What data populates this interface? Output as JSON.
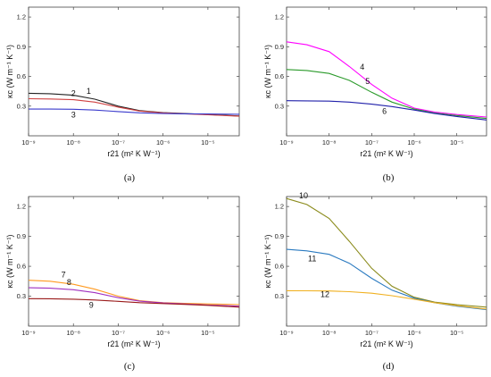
{
  "chart_data": [
    {
      "type": "line",
      "panel": "a",
      "caption": "(a)",
      "xlabel": "r21 (m² K W⁻¹)",
      "ylabel": "κc (W m⁻¹ K⁻¹)",
      "x_scale": "log",
      "xlim": [
        1e-09,
        5e-05
      ],
      "ylim": [
        0,
        1.3
      ],
      "x_ticks": [
        "10⁻⁹",
        "10⁻⁸",
        "10⁻⁷",
        "10⁻⁶",
        "10⁻⁵"
      ],
      "y_ticks": [
        "0.3",
        "0.6",
        "0.9",
        "1.2"
      ],
      "grid": false,
      "series": [
        {
          "name": "1",
          "color": "#222222",
          "x": [
            1e-09,
            3e-09,
            1e-08,
            3e-08,
            1e-07,
            3e-07,
            1e-06,
            3e-06,
            1e-05,
            5e-05
          ],
          "y": [
            0.43,
            0.425,
            0.41,
            0.37,
            0.3,
            0.255,
            0.235,
            0.225,
            0.215,
            0.2
          ]
        },
        {
          "name": "2",
          "color": "#d04040",
          "x": [
            1e-09,
            3e-09,
            1e-08,
            3e-08,
            1e-07,
            3e-07,
            1e-06,
            3e-06,
            1e-05,
            5e-05
          ],
          "y": [
            0.375,
            0.372,
            0.365,
            0.34,
            0.29,
            0.25,
            0.232,
            0.222,
            0.212,
            0.198
          ]
        },
        {
          "name": "3",
          "color": "#3a3acc",
          "x": [
            1e-09,
            3e-09,
            1e-08,
            3e-08,
            1e-07,
            3e-07,
            1e-06,
            3e-06,
            1e-05,
            5e-05
          ],
          "y": [
            0.27,
            0.27,
            0.268,
            0.26,
            0.245,
            0.232,
            0.225,
            0.222,
            0.22,
            0.218
          ]
        }
      ]
    },
    {
      "type": "line",
      "panel": "b",
      "caption": "(b)",
      "xlabel": "r21 (m² K W⁻¹)",
      "ylabel": "κc (W m⁻¹ K⁻¹)",
      "x_scale": "log",
      "xlim": [
        1e-09,
        5e-05
      ],
      "ylim": [
        0,
        1.3
      ],
      "x_ticks": [
        "10⁻⁹",
        "10⁻⁸",
        "10⁻⁷",
        "10⁻⁶",
        "10⁻⁵"
      ],
      "y_ticks": [
        "0.3",
        "0.6",
        "0.9",
        "1.2"
      ],
      "grid": false,
      "series": [
        {
          "name": "4",
          "color": "#ff00ff",
          "x": [
            1e-09,
            3e-09,
            1e-08,
            3e-08,
            1e-07,
            3e-07,
            1e-06,
            3e-06,
            1e-05,
            5e-05
          ],
          "y": [
            0.95,
            0.92,
            0.85,
            0.7,
            0.52,
            0.38,
            0.28,
            0.24,
            0.215,
            0.19
          ]
        },
        {
          "name": "5",
          "color": "#2a9a2a",
          "x": [
            1e-09,
            3e-09,
            1e-08,
            3e-08,
            1e-07,
            3e-07,
            1e-06,
            3e-06,
            1e-05,
            5e-05
          ],
          "y": [
            0.67,
            0.66,
            0.63,
            0.56,
            0.44,
            0.34,
            0.27,
            0.23,
            0.205,
            0.175
          ]
        },
        {
          "name": "6",
          "color": "#2020aa",
          "x": [
            1e-09,
            3e-09,
            1e-08,
            3e-08,
            1e-07,
            3e-07,
            1e-06,
            3e-06,
            1e-05,
            5e-05
          ],
          "y": [
            0.355,
            0.353,
            0.35,
            0.34,
            0.32,
            0.295,
            0.26,
            0.225,
            0.195,
            0.16
          ]
        }
      ]
    },
    {
      "type": "line",
      "panel": "c",
      "caption": "(c)",
      "xlabel": "r21 (m² K W⁻¹)",
      "ylabel": "κc (W m⁻¹ K⁻¹)",
      "x_scale": "log",
      "xlim": [
        1e-09,
        5e-05
      ],
      "ylim": [
        0,
        1.3
      ],
      "x_ticks": [
        "10⁻⁹",
        "10⁻⁸",
        "10⁻⁷",
        "10⁻⁶",
        "10⁻⁵"
      ],
      "y_ticks": [
        "0.3",
        "0.6",
        "0.9",
        "1.2"
      ],
      "grid": false,
      "series": [
        {
          "name": "7",
          "color": "#ff9a20",
          "x": [
            1e-09,
            3e-09,
            1e-08,
            3e-08,
            1e-07,
            3e-07,
            1e-06,
            3e-06,
            1e-05,
            5e-05
          ],
          "y": [
            0.46,
            0.45,
            0.42,
            0.37,
            0.3,
            0.255,
            0.235,
            0.228,
            0.222,
            0.215
          ]
        },
        {
          "name": "8",
          "color": "#a030c0",
          "x": [
            1e-09,
            3e-09,
            1e-08,
            3e-08,
            1e-07,
            3e-07,
            1e-06,
            3e-06,
            1e-05,
            5e-05
          ],
          "y": [
            0.385,
            0.38,
            0.365,
            0.335,
            0.285,
            0.25,
            0.232,
            0.222,
            0.212,
            0.2
          ]
        },
        {
          "name": "9",
          "color": "#9a1a1a",
          "x": [
            1e-09,
            3e-09,
            1e-08,
            3e-08,
            1e-07,
            3e-07,
            1e-06,
            3e-06,
            1e-05,
            5e-05
          ],
          "y": [
            0.275,
            0.274,
            0.27,
            0.262,
            0.248,
            0.235,
            0.226,
            0.218,
            0.208,
            0.19
          ]
        }
      ]
    },
    {
      "type": "line",
      "panel": "d",
      "caption": "(d)",
      "xlabel": "r21 (m² K W⁻¹)",
      "ylabel": "κc (W m⁻¹ K⁻¹)",
      "x_scale": "log",
      "xlim": [
        1e-09,
        5e-05
      ],
      "ylim": [
        0,
        1.3
      ],
      "x_ticks": [
        "10⁻⁹",
        "10⁻⁸",
        "10⁻⁷",
        "10⁻⁶",
        "10⁻⁵"
      ],
      "y_ticks": [
        "0.3",
        "0.6",
        "0.9",
        "1.2"
      ],
      "grid": false,
      "series": [
        {
          "name": "10",
          "color": "#8a8a1a",
          "x": [
            1e-09,
            3e-09,
            1e-08,
            3e-08,
            1e-07,
            3e-07,
            1e-06,
            3e-06,
            1e-05,
            5e-05
          ],
          "y": [
            1.28,
            1.22,
            1.08,
            0.85,
            0.58,
            0.4,
            0.29,
            0.24,
            0.215,
            0.19
          ]
        },
        {
          "name": "11",
          "color": "#2a7ac0",
          "x": [
            1e-09,
            3e-09,
            1e-08,
            3e-08,
            1e-07,
            3e-07,
            1e-06,
            3e-06,
            1e-05,
            5e-05
          ],
          "y": [
            0.77,
            0.755,
            0.72,
            0.63,
            0.48,
            0.36,
            0.28,
            0.235,
            0.2,
            0.165
          ]
        },
        {
          "name": "12",
          "color": "#f0b020",
          "x": [
            1e-09,
            3e-09,
            1e-08,
            3e-08,
            1e-07,
            3e-07,
            1e-06,
            3e-06,
            1e-05,
            5e-05
          ],
          "y": [
            0.355,
            0.354,
            0.352,
            0.345,
            0.33,
            0.305,
            0.27,
            0.235,
            0.205,
            0.17
          ]
        }
      ]
    }
  ]
}
